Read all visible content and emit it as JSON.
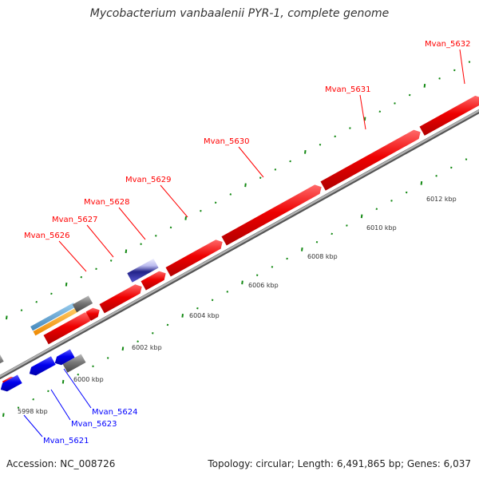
{
  "title": "Mycobacterium vanbaalenii PYR-1, complete genome",
  "accession": "Accession: NC_008726",
  "summary": "Topology: circular; Length: 6,491,865 bp; Genes: 6,037",
  "colors": {
    "forward_gene": "#ff0000",
    "reverse_gene": "#0000ff",
    "other_feature": "#777777",
    "rna_orange": "#ff9900",
    "rna_blue": "#5599cc",
    "purple_feature": "#3333aa",
    "tick_green": "#118811",
    "backbone": "#999999"
  },
  "scale_labels": [
    "5998 kbp",
    "6000 kbp",
    "6002 kbp",
    "6004 kbp",
    "6006 kbp",
    "6008 kbp",
    "6010 kbp",
    "6012 kbp"
  ],
  "forward_labels": [
    "Mvan_5626",
    "Mvan_5627",
    "Mvan_5628",
    "Mvan_5629",
    "Mvan_5630",
    "Mvan_5631",
    "Mvan_5632"
  ],
  "reverse_labels": [
    "Mvan_5621",
    "Mvan_5623",
    "Mvan_5624"
  ]
}
